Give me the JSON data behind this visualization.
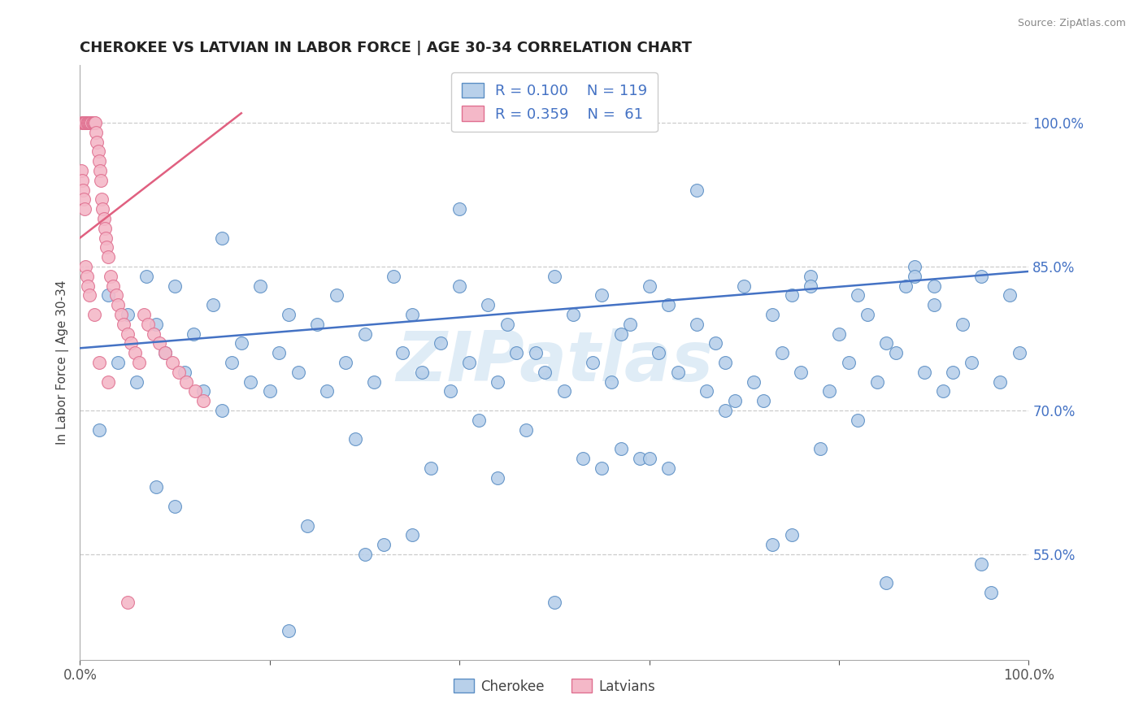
{
  "title": "CHEROKEE VS LATVIAN IN LABOR FORCE | AGE 30-34 CORRELATION CHART",
  "source_text": "Source: ZipAtlas.com",
  "ylabel": "In Labor Force | Age 30-34",
  "xlim": [
    0.0,
    1.0
  ],
  "ylim": [
    0.44,
    1.06
  ],
  "ytick_positions": [
    0.55,
    0.7,
    0.85,
    1.0
  ],
  "ytick_labels": [
    "55.0%",
    "70.0%",
    "85.0%",
    "100.0%"
  ],
  "blue_R": 0.1,
  "blue_N": 119,
  "pink_R": 0.359,
  "pink_N": 61,
  "blue_fill": "#b8d0ea",
  "pink_fill": "#f4b8c8",
  "blue_edge": "#5b8ec4",
  "pink_edge": "#e07090",
  "blue_line_color": "#4472c4",
  "pink_line_color": "#e06080",
  "watermark": "ZIPatlas",
  "legend_blue_label": "Cherokee",
  "legend_pink_label": "Latvians",
  "blue_line_x0": 0.0,
  "blue_line_x1": 1.0,
  "blue_line_y0": 0.765,
  "blue_line_y1": 0.845,
  "pink_line_x0": 0.0,
  "pink_line_x1": 0.17,
  "pink_line_y0": 0.88,
  "pink_line_y1": 1.01,
  "blue_scatter_x": [
    0.03,
    0.05,
    0.07,
    0.08,
    0.1,
    0.12,
    0.14,
    0.17,
    0.19,
    0.22,
    0.25,
    0.27,
    0.3,
    0.33,
    0.35,
    0.38,
    0.4,
    0.43,
    0.45,
    0.48,
    0.5,
    0.52,
    0.55,
    0.57,
    0.6,
    0.62,
    0.65,
    0.67,
    0.7,
    0.73,
    0.75,
    0.77,
    0.8,
    0.83,
    0.85,
    0.87,
    0.9,
    0.93,
    0.95,
    0.98,
    0.04,
    0.06,
    0.09,
    0.11,
    0.13,
    0.16,
    0.18,
    0.21,
    0.23,
    0.26,
    0.28,
    0.31,
    0.34,
    0.36,
    0.39,
    0.41,
    0.44,
    0.46,
    0.49,
    0.51,
    0.54,
    0.56,
    0.58,
    0.61,
    0.63,
    0.66,
    0.68,
    0.71,
    0.74,
    0.76,
    0.79,
    0.81,
    0.84,
    0.86,
    0.89,
    0.91,
    0.94,
    0.97,
    0.99,
    0.02,
    0.15,
    0.29,
    0.42,
    0.53,
    0.72,
    0.78,
    0.88,
    0.96,
    0.2,
    0.37,
    0.47,
    0.59,
    0.69,
    0.82,
    0.92,
    0.08,
    0.32,
    0.62,
    0.75,
    0.85,
    0.1,
    0.24,
    0.44,
    0.57,
    0.68,
    0.77,
    0.9,
    0.35,
    0.55,
    0.82,
    0.15,
    0.4,
    0.65,
    0.88,
    0.22,
    0.5,
    0.73,
    0.95,
    0.3,
    0.6
  ],
  "blue_scatter_y": [
    0.82,
    0.8,
    0.84,
    0.79,
    0.83,
    0.78,
    0.81,
    0.77,
    0.83,
    0.8,
    0.79,
    0.82,
    0.78,
    0.84,
    0.8,
    0.77,
    0.83,
    0.81,
    0.79,
    0.76,
    0.84,
    0.8,
    0.82,
    0.78,
    0.83,
    0.81,
    0.79,
    0.77,
    0.83,
    0.8,
    0.82,
    0.84,
    0.78,
    0.8,
    0.77,
    0.83,
    0.81,
    0.79,
    0.84,
    0.82,
    0.75,
    0.73,
    0.76,
    0.74,
    0.72,
    0.75,
    0.73,
    0.76,
    0.74,
    0.72,
    0.75,
    0.73,
    0.76,
    0.74,
    0.72,
    0.75,
    0.73,
    0.76,
    0.74,
    0.72,
    0.75,
    0.73,
    0.79,
    0.76,
    0.74,
    0.72,
    0.75,
    0.73,
    0.76,
    0.74,
    0.72,
    0.75,
    0.73,
    0.76,
    0.74,
    0.72,
    0.75,
    0.73,
    0.76,
    0.68,
    0.7,
    0.67,
    0.69,
    0.65,
    0.71,
    0.66,
    0.85,
    0.51,
    0.72,
    0.64,
    0.68,
    0.65,
    0.71,
    0.69,
    0.74,
    0.62,
    0.56,
    0.64,
    0.57,
    0.52,
    0.6,
    0.58,
    0.63,
    0.66,
    0.7,
    0.83,
    0.83,
    0.57,
    0.64,
    0.82,
    0.88,
    0.91,
    0.93,
    0.84,
    0.47,
    0.5,
    0.56,
    0.54,
    0.55,
    0.65
  ],
  "pink_scatter_x": [
    0.002,
    0.003,
    0.004,
    0.005,
    0.006,
    0.007,
    0.008,
    0.009,
    0.01,
    0.011,
    0.012,
    0.013,
    0.014,
    0.015,
    0.016,
    0.017,
    0.018,
    0.019,
    0.02,
    0.021,
    0.022,
    0.023,
    0.024,
    0.025,
    0.026,
    0.027,
    0.028,
    0.03,
    0.032,
    0.035,
    0.038,
    0.04,
    0.043,
    0.046,
    0.05,
    0.054,
    0.058,
    0.062,
    0.067,
    0.072,
    0.078,
    0.084,
    0.09,
    0.097,
    0.104,
    0.112,
    0.121,
    0.13,
    0.001,
    0.002,
    0.003,
    0.004,
    0.005,
    0.006,
    0.007,
    0.008,
    0.01,
    0.015,
    0.02,
    0.03,
    0.05
  ],
  "pink_scatter_y": [
    1.0,
    1.0,
    1.0,
    1.0,
    1.0,
    1.0,
    1.0,
    1.0,
    1.0,
    1.0,
    1.0,
    1.0,
    1.0,
    1.0,
    1.0,
    0.99,
    0.98,
    0.97,
    0.96,
    0.95,
    0.94,
    0.92,
    0.91,
    0.9,
    0.89,
    0.88,
    0.87,
    0.86,
    0.84,
    0.83,
    0.82,
    0.81,
    0.8,
    0.79,
    0.78,
    0.77,
    0.76,
    0.75,
    0.8,
    0.79,
    0.78,
    0.77,
    0.76,
    0.75,
    0.74,
    0.73,
    0.72,
    0.71,
    0.95,
    0.94,
    0.93,
    0.92,
    0.91,
    0.85,
    0.84,
    0.83,
    0.82,
    0.8,
    0.75,
    0.73,
    0.5
  ]
}
